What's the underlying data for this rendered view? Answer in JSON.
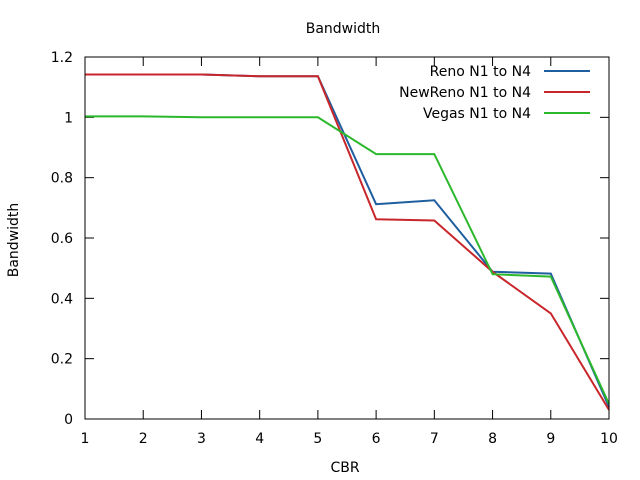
{
  "chart_data": {
    "type": "line",
    "title": "Bandwidth",
    "xlabel": "CBR",
    "ylabel": "Bandwidth",
    "xlim": [
      1,
      10
    ],
    "ylim": [
      0,
      1.2
    ],
    "x_ticks": [
      1,
      2,
      3,
      4,
      5,
      6,
      7,
      8,
      9,
      10
    ],
    "y_ticks": [
      0,
      0.2,
      0.4,
      0.6,
      0.8,
      1,
      1.2
    ],
    "y_tick_labels": [
      "0",
      "0.2",
      "0.4",
      "0.6",
      "0.8",
      "1",
      "1.2"
    ],
    "grid": false,
    "legend_position": "top-right",
    "series": [
      {
        "name": "Reno N1 to N4",
        "color": "#1f5fa0",
        "x": [
          1,
          2,
          3,
          4,
          5,
          6,
          7,
          8,
          9,
          10
        ],
        "y": [
          1.142,
          1.142,
          1.142,
          1.136,
          1.136,
          0.712,
          0.725,
          0.488,
          0.482,
          0.04
        ]
      },
      {
        "name": "NewReno N1 to N4",
        "color": "#c8262b",
        "x": [
          1,
          2,
          3,
          4,
          5,
          6,
          7,
          8,
          9,
          10
        ],
        "y": [
          1.142,
          1.142,
          1.142,
          1.136,
          1.136,
          0.662,
          0.658,
          0.488,
          0.35,
          0.03
        ]
      },
      {
        "name": "Vegas N1 to N4",
        "color": "#2cb82c",
        "x": [
          1,
          2,
          3,
          4,
          5,
          6,
          7,
          8,
          9,
          10
        ],
        "y": [
          1.003,
          1.003,
          1.0,
          1.0,
          1.0,
          0.878,
          0.878,
          0.48,
          0.472,
          0.05
        ]
      }
    ]
  }
}
